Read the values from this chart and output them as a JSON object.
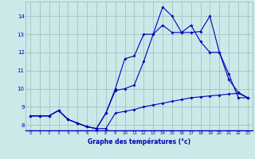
{
  "xlabel": "Graphe des températures (°c)",
  "hours": [
    0,
    1,
    2,
    3,
    4,
    5,
    6,
    7,
    8,
    9,
    10,
    11,
    12,
    13,
    14,
    15,
    16,
    17,
    18,
    19,
    20,
    21,
    22,
    23
  ],
  "line1": [
    8.5,
    8.5,
    8.5,
    8.8,
    8.3,
    8.1,
    7.9,
    7.8,
    7.8,
    8.65,
    8.75,
    8.85,
    9.0,
    9.1,
    9.2,
    9.3,
    9.4,
    9.5,
    9.55,
    9.6,
    9.65,
    9.7,
    9.75,
    9.5
  ],
  "line2": [
    8.5,
    8.5,
    8.5,
    8.8,
    8.3,
    8.1,
    7.9,
    7.8,
    8.65,
    10.0,
    11.65,
    11.8,
    13.0,
    13.0,
    14.5,
    14.0,
    13.1,
    13.1,
    13.15,
    14.0,
    12.0,
    10.5,
    9.8,
    9.5
  ],
  "line3": [
    8.5,
    8.5,
    8.5,
    8.8,
    8.3,
    8.1,
    7.9,
    7.8,
    8.65,
    9.9,
    10.0,
    10.2,
    11.5,
    13.0,
    13.5,
    13.1,
    13.1,
    13.5,
    12.6,
    12.0,
    12.0,
    10.8,
    9.5,
    9.5
  ],
  "bg_color": "#cce8e8",
  "line_color": "#0000bb",
  "grid_color": "#99bbbb",
  "ylim": [
    7.7,
    14.8
  ],
  "xlim": [
    -0.5,
    23.5
  ]
}
